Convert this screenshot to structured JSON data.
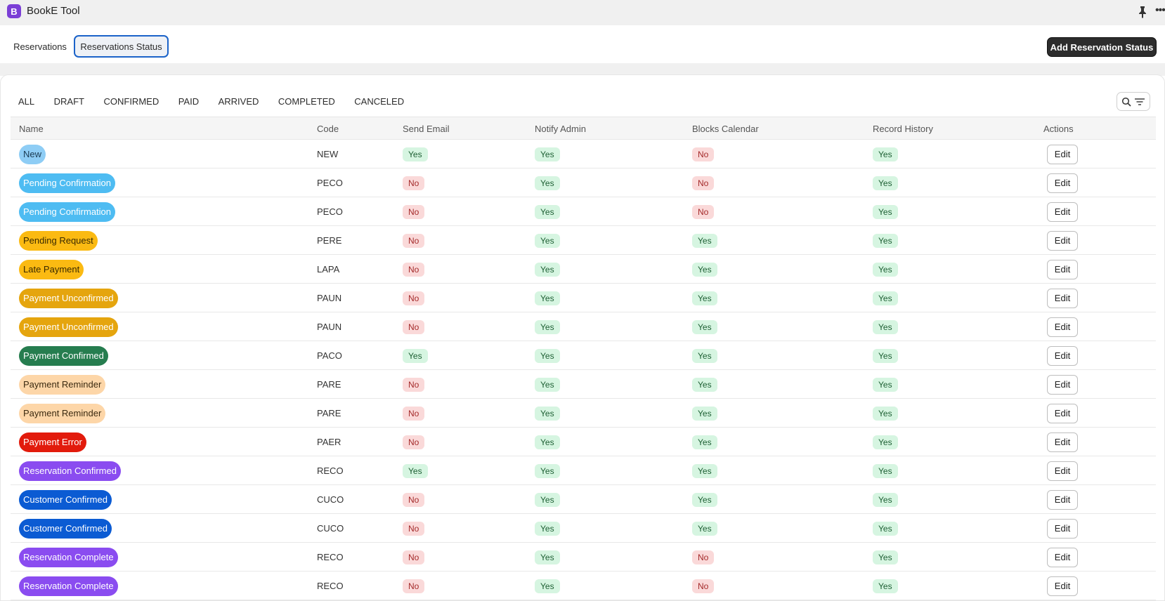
{
  "app": {
    "icon_letter": "B",
    "title": "BookE Tool"
  },
  "titlebar_icons": {
    "pin": "pin-icon",
    "more": "more-icon"
  },
  "tabs": [
    {
      "label": "Reservations",
      "active": false
    },
    {
      "label": "Reservations Status",
      "active": true
    }
  ],
  "add_button_label": "Add Reservation Status",
  "filters": [
    "ALL",
    "DRAFT",
    "CONFIRMED",
    "PAID",
    "ARRIVED",
    "COMPLETED",
    "CANCELED"
  ],
  "search_icons": [
    "search-icon",
    "filter-icon"
  ],
  "columns": [
    "Name",
    "Code",
    "Send Email",
    "Notify Admin",
    "Blocks Calendar",
    "Record History",
    "Actions"
  ],
  "edit_label": "Edit",
  "rows": [
    {
      "name": "New",
      "code": "NEW",
      "bg": "#8ecdf5",
      "fg": "#1a3a52",
      "send_email": "Yes",
      "notify_admin": "Yes",
      "blocks_calendar": "No",
      "record_history": "Yes"
    },
    {
      "name": "Pending Confirmation",
      "code": "PECO",
      "bg": "#4ebcf2",
      "fg": "#ffffff",
      "send_email": "No",
      "notify_admin": "Yes",
      "blocks_calendar": "No",
      "record_history": "Yes"
    },
    {
      "name": "Pending Confirmation",
      "code": "PECO",
      "bg": "#4ebcf2",
      "fg": "#ffffff",
      "send_email": "No",
      "notify_admin": "Yes",
      "blocks_calendar": "No",
      "record_history": "Yes"
    },
    {
      "name": "Pending Request",
      "code": "PERE",
      "bg": "#fbba12",
      "fg": "#3a2a00",
      "send_email": "No",
      "notify_admin": "Yes",
      "blocks_calendar": "Yes",
      "record_history": "Yes"
    },
    {
      "name": "Late Payment",
      "code": "LAPA",
      "bg": "#fbba12",
      "fg": "#3a2a00",
      "send_email": "No",
      "notify_admin": "Yes",
      "blocks_calendar": "Yes",
      "record_history": "Yes"
    },
    {
      "name": "Payment Unconfirmed",
      "code": "PAUN",
      "bg": "#e5a50e",
      "fg": "#ffffff",
      "send_email": "No",
      "notify_admin": "Yes",
      "blocks_calendar": "Yes",
      "record_history": "Yes"
    },
    {
      "name": "Payment Unconfirmed",
      "code": "PAUN",
      "bg": "#e5a50e",
      "fg": "#ffffff",
      "send_email": "No",
      "notify_admin": "Yes",
      "blocks_calendar": "Yes",
      "record_history": "Yes"
    },
    {
      "name": "Payment Confirmed",
      "code": "PACO",
      "bg": "#267d4f",
      "fg": "#ffffff",
      "send_email": "Yes",
      "notify_admin": "Yes",
      "blocks_calendar": "Yes",
      "record_history": "Yes"
    },
    {
      "name": "Payment Reminder",
      "code": "PARE",
      "bg": "#fdd6a8",
      "fg": "#3a2a10",
      "send_email": "No",
      "notify_admin": "Yes",
      "blocks_calendar": "Yes",
      "record_history": "Yes"
    },
    {
      "name": "Payment Reminder",
      "code": "PARE",
      "bg": "#fdd6a8",
      "fg": "#3a2a10",
      "send_email": "No",
      "notify_admin": "Yes",
      "blocks_calendar": "Yes",
      "record_history": "Yes"
    },
    {
      "name": "Payment Error",
      "code": "PAER",
      "bg": "#e21b0c",
      "fg": "#ffffff",
      "send_email": "No",
      "notify_admin": "Yes",
      "blocks_calendar": "Yes",
      "record_history": "Yes"
    },
    {
      "name": "Reservation Confirmed",
      "code": "RECO",
      "bg": "#8a4cf0",
      "fg": "#ffffff",
      "send_email": "Yes",
      "notify_admin": "Yes",
      "blocks_calendar": "Yes",
      "record_history": "Yes"
    },
    {
      "name": "Customer Confirmed",
      "code": "CUCO",
      "bg": "#0b5bd3",
      "fg": "#ffffff",
      "send_email": "No",
      "notify_admin": "Yes",
      "blocks_calendar": "Yes",
      "record_history": "Yes"
    },
    {
      "name": "Customer Confirmed",
      "code": "CUCO",
      "bg": "#0b5bd3",
      "fg": "#ffffff",
      "send_email": "No",
      "notify_admin": "Yes",
      "blocks_calendar": "Yes",
      "record_history": "Yes"
    },
    {
      "name": "Reservation Complete",
      "code": "RECO",
      "bg": "#8a4cf0",
      "fg": "#ffffff",
      "send_email": "No",
      "notify_admin": "Yes",
      "blocks_calendar": "No",
      "record_history": "Yes"
    },
    {
      "name": "Reservation Complete",
      "code": "RECO",
      "bg": "#8a4cf0",
      "fg": "#ffffff",
      "send_email": "No",
      "notify_admin": "Yes",
      "blocks_calendar": "No",
      "record_history": "Yes"
    }
  ]
}
